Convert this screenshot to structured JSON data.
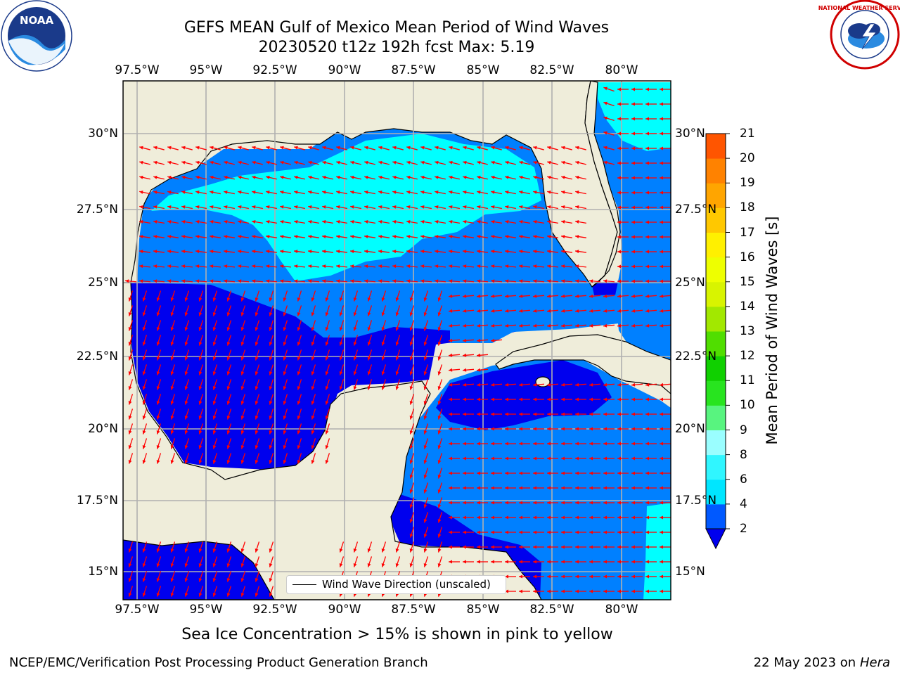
{
  "title_line1": "GEFS MEAN Gulf of Mexico Mean Period of Wind Waves",
  "title_line2": "20230520 t12z 192h fcst   Max: 5.19",
  "colorbar": {
    "label": "Mean Period of Wind Waves [s]",
    "ticks": [
      "2",
      "4",
      "6",
      "8",
      "9",
      "10",
      "11",
      "12",
      "13",
      "14",
      "15",
      "16",
      "17",
      "18",
      "19",
      "20",
      "21"
    ],
    "colors": [
      "#0059ff",
      "#00e6ff",
      "#30f6ff",
      "#9afeff",
      "#58f47f",
      "#28e41f",
      "#10d000",
      "#50de00",
      "#a2e800",
      "#d8f400",
      "#eeff00",
      "#fff000",
      "#ffc800",
      "#ffa500",
      "#ff8200",
      "#ff5500",
      "#ff2a00",
      "#ff0000"
    ],
    "underflow_color": "#0000ee"
  },
  "map": {
    "lon_labels": [
      "97.5°W",
      "95°W",
      "92.5°W",
      "90°W",
      "87.5°W",
      "85°W",
      "82.5°W",
      "80°W"
    ],
    "lat_labels": [
      "30°N",
      "27.5°N",
      "25°N",
      "22.5°N",
      "20°N",
      "17.5°N",
      "15°N"
    ],
    "land_color": "#efedda",
    "level_colors": {
      "below_2": "#0000ee",
      "2_to_4": "#0080ff",
      "4_to_6": "#00ffff"
    },
    "arrow_color": "#ff0000"
  },
  "legend_label": "Wind Wave Direction (unscaled)",
  "footnote": "Sea Ice Concentration > 15% is shown in pink to yellow",
  "credit": "NCEP/EMC/Verification Post Processing Product Generation Branch",
  "run_date": "22 May 2023 on",
  "run_machine": "Hera",
  "logos": {
    "left": "NOAA",
    "right": "NATIONAL WEATHER SERVICE"
  }
}
